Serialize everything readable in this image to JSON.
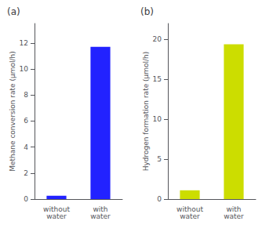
{
  "chart_data": [
    {
      "type": "bar",
      "title": "(a)",
      "categories": [
        "without\nwater",
        "with\nwater"
      ],
      "values": [
        0.25,
        11.7
      ],
      "color": "#2222ff",
      "ylabel": "Methane conversion rate (μmol/h)",
      "ylim": [
        0,
        13.5
      ],
      "yticks": [
        0,
        2,
        4,
        6,
        8,
        10,
        12
      ],
      "grid": false
    },
    {
      "type": "bar",
      "title": "(b)",
      "categories": [
        "without\nwater",
        "with\nwater"
      ],
      "values": [
        1.1,
        19.4
      ],
      "color": "#ccdd00",
      "ylabel": "Hydrogen formation rate (μmol/h)",
      "ylim": [
        0,
        22
      ],
      "yticks": [
        0,
        5,
        10,
        15,
        20
      ],
      "grid": false
    }
  ]
}
